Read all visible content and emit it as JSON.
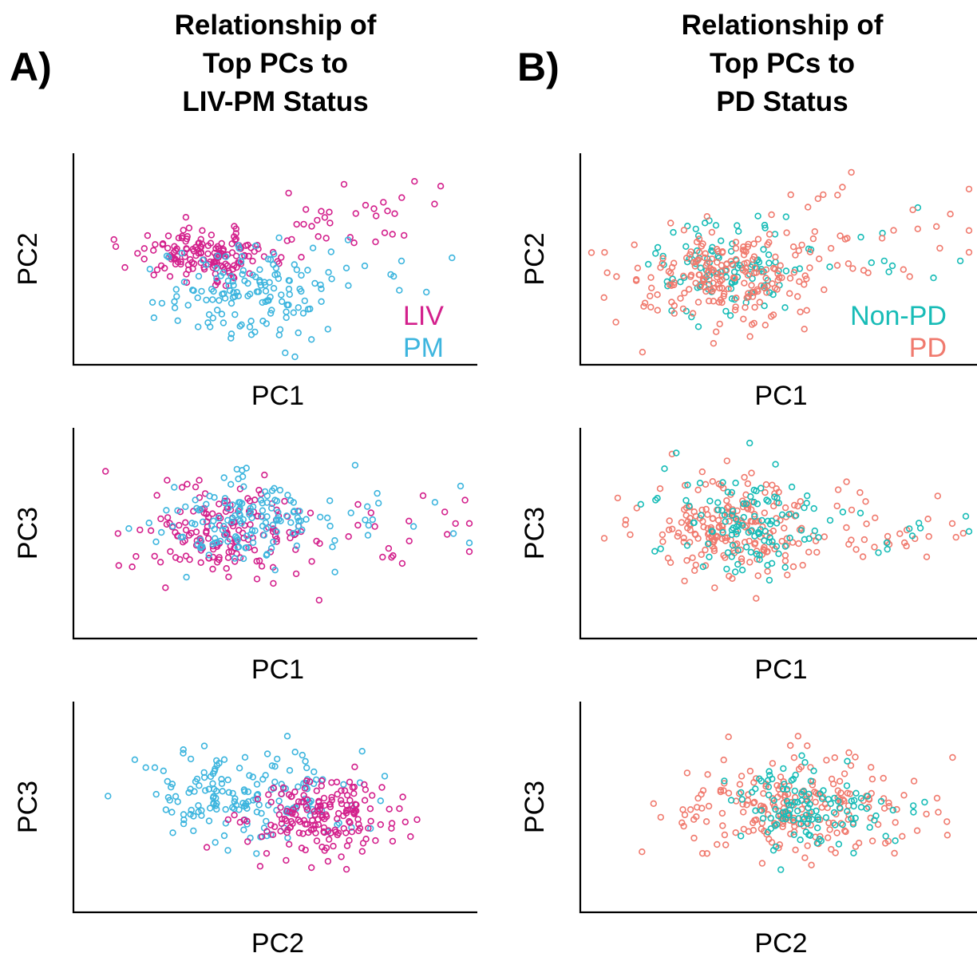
{
  "panels": [
    {
      "letter": "A)",
      "title_lines": [
        "Relationship of",
        "Top PCs to",
        "LIV-PM Status"
      ],
      "legend": [
        {
          "label": "LIV",
          "color": "#d3208c"
        },
        {
          "label": "PM",
          "color": "#3db5de"
        }
      ]
    },
    {
      "letter": "B)",
      "title_lines": [
        "Relationship of",
        "Top PCs to",
        "PD Status"
      ],
      "legend": [
        {
          "label": "Non-PD",
          "color": "#18bcb7"
        },
        {
          "label": "PD",
          "color": "#f07a6e"
        }
      ]
    }
  ],
  "chart_data": [
    {
      "type": "scatter",
      "panel": "A",
      "xlabel": "PC1",
      "ylabel": "PC2",
      "xlim": [
        -3,
        6.5
      ],
      "ylim": [
        -3,
        5
      ],
      "grid": false,
      "legend_position": "bottom-right",
      "series": [
        {
          "name": "LIV",
          "color": "#d3208c",
          "clusters": [
            {
              "cx": 0,
              "cy": 1.2,
              "sx": 0.9,
              "sy": 0.5,
              "n": 150
            },
            {
              "cx": 3.6,
              "cy": 2.8,
              "sx": 1.5,
              "sy": 0.9,
              "n": 32
            }
          ]
        },
        {
          "name": "PM",
          "color": "#3db5de",
          "clusters": [
            {
              "cx": 1.0,
              "cy": -0.4,
              "sx": 1.0,
              "sy": 1.0,
              "n": 140
            },
            {
              "cx": 4.0,
              "cy": 0.6,
              "sx": 1.2,
              "sy": 0.6,
              "n": 14
            }
          ]
        }
      ]
    },
    {
      "type": "scatter",
      "panel": "A",
      "xlabel": "PC1",
      "ylabel": "PC3",
      "xlim": [
        -3,
        6.5
      ],
      "ylim": [
        -4,
        4
      ],
      "grid": false,
      "series": [
        {
          "name": "LIV",
          "color": "#d3208c",
          "clusters": [
            {
              "cx": 0.3,
              "cy": -0.1,
              "sx": 1.0,
              "sy": 1.0,
              "n": 160
            },
            {
              "cx": 4.3,
              "cy": -0.2,
              "sx": 1.2,
              "sy": 0.8,
              "n": 22
            }
          ]
        },
        {
          "name": "PM",
          "color": "#3db5de",
          "clusters": [
            {
              "cx": 1.1,
              "cy": 0.7,
              "sx": 1.1,
              "sy": 1.0,
              "n": 140
            },
            {
              "cx": 4.5,
              "cy": 0.4,
              "sx": 1.0,
              "sy": 0.6,
              "n": 14
            }
          ]
        }
      ]
    },
    {
      "type": "scatter",
      "panel": "A",
      "xlabel": "PC2",
      "ylabel": "PC3",
      "xlim": [
        -5,
        6
      ],
      "ylim": [
        -4,
        4
      ],
      "grid": false,
      "series": [
        {
          "name": "PM",
          "color": "#3db5de",
          "clusters": [
            {
              "cx": -0.4,
              "cy": 0.4,
              "sx": 1.6,
              "sy": 1.0,
              "n": 170
            }
          ]
        },
        {
          "name": "LIV",
          "color": "#d3208c",
          "clusters": [
            {
              "cx": 1.8,
              "cy": -0.4,
              "sx": 1.1,
              "sy": 0.8,
              "n": 180
            }
          ]
        }
      ]
    },
    {
      "type": "scatter",
      "panel": "B",
      "xlabel": "PC1",
      "ylabel": "PC2",
      "xlim": [
        -3,
        6.5
      ],
      "ylim": [
        -3,
        5
      ],
      "grid": false,
      "legend_position": "bottom-right",
      "series": [
        {
          "name": "Non-PD",
          "color": "#18bcb7",
          "clusters": [
            {
              "cx": 0.4,
              "cy": 0.6,
              "sx": 1.0,
              "sy": 0.9,
              "n": 110
            },
            {
              "cx": 4.0,
              "cy": 1.6,
              "sx": 1.3,
              "sy": 1.0,
              "n": 12
            }
          ]
        },
        {
          "name": "PD",
          "color": "#f07a6e",
          "clusters": [
            {
              "cx": 0.5,
              "cy": 0.4,
              "sx": 1.1,
              "sy": 1.0,
              "n": 200
            },
            {
              "cx": 3.8,
              "cy": 2.0,
              "sx": 1.5,
              "sy": 1.0,
              "n": 34
            }
          ]
        }
      ]
    },
    {
      "type": "scatter",
      "panel": "B",
      "xlabel": "PC1",
      "ylabel": "PC3",
      "xlim": [
        -3,
        6.5
      ],
      "ylim": [
        -4,
        4
      ],
      "grid": false,
      "series": [
        {
          "name": "PD",
          "color": "#f07a6e",
          "clusters": [
            {
              "cx": 0.6,
              "cy": 0.2,
              "sx": 1.1,
              "sy": 1.0,
              "n": 200
            },
            {
              "cx": 4.3,
              "cy": 0.0,
              "sx": 1.3,
              "sy": 0.8,
              "n": 34
            }
          ]
        },
        {
          "name": "Non-PD",
          "color": "#18bcb7",
          "clusters": [
            {
              "cx": 0.8,
              "cy": 0.3,
              "sx": 1.0,
              "sy": 1.0,
              "n": 110
            },
            {
              "cx": 4.6,
              "cy": 0.4,
              "sx": 1.1,
              "sy": 0.6,
              "n": 12
            }
          ]
        }
      ]
    },
    {
      "type": "scatter",
      "panel": "B",
      "xlabel": "PC2",
      "ylabel": "PC3",
      "xlim": [
        -5,
        6
      ],
      "ylim": [
        -4,
        4
      ],
      "grid": false,
      "series": [
        {
          "name": "PD",
          "color": "#f07a6e",
          "clusters": [
            {
              "cx": 0.8,
              "cy": 0.0,
              "sx": 1.6,
              "sy": 1.0,
              "n": 220
            }
          ]
        },
        {
          "name": "Non-PD",
          "color": "#18bcb7",
          "clusters": [
            {
              "cx": 1.2,
              "cy": -0.1,
              "sx": 1.2,
              "sy": 0.9,
              "n": 120
            }
          ]
        }
      ]
    }
  ]
}
